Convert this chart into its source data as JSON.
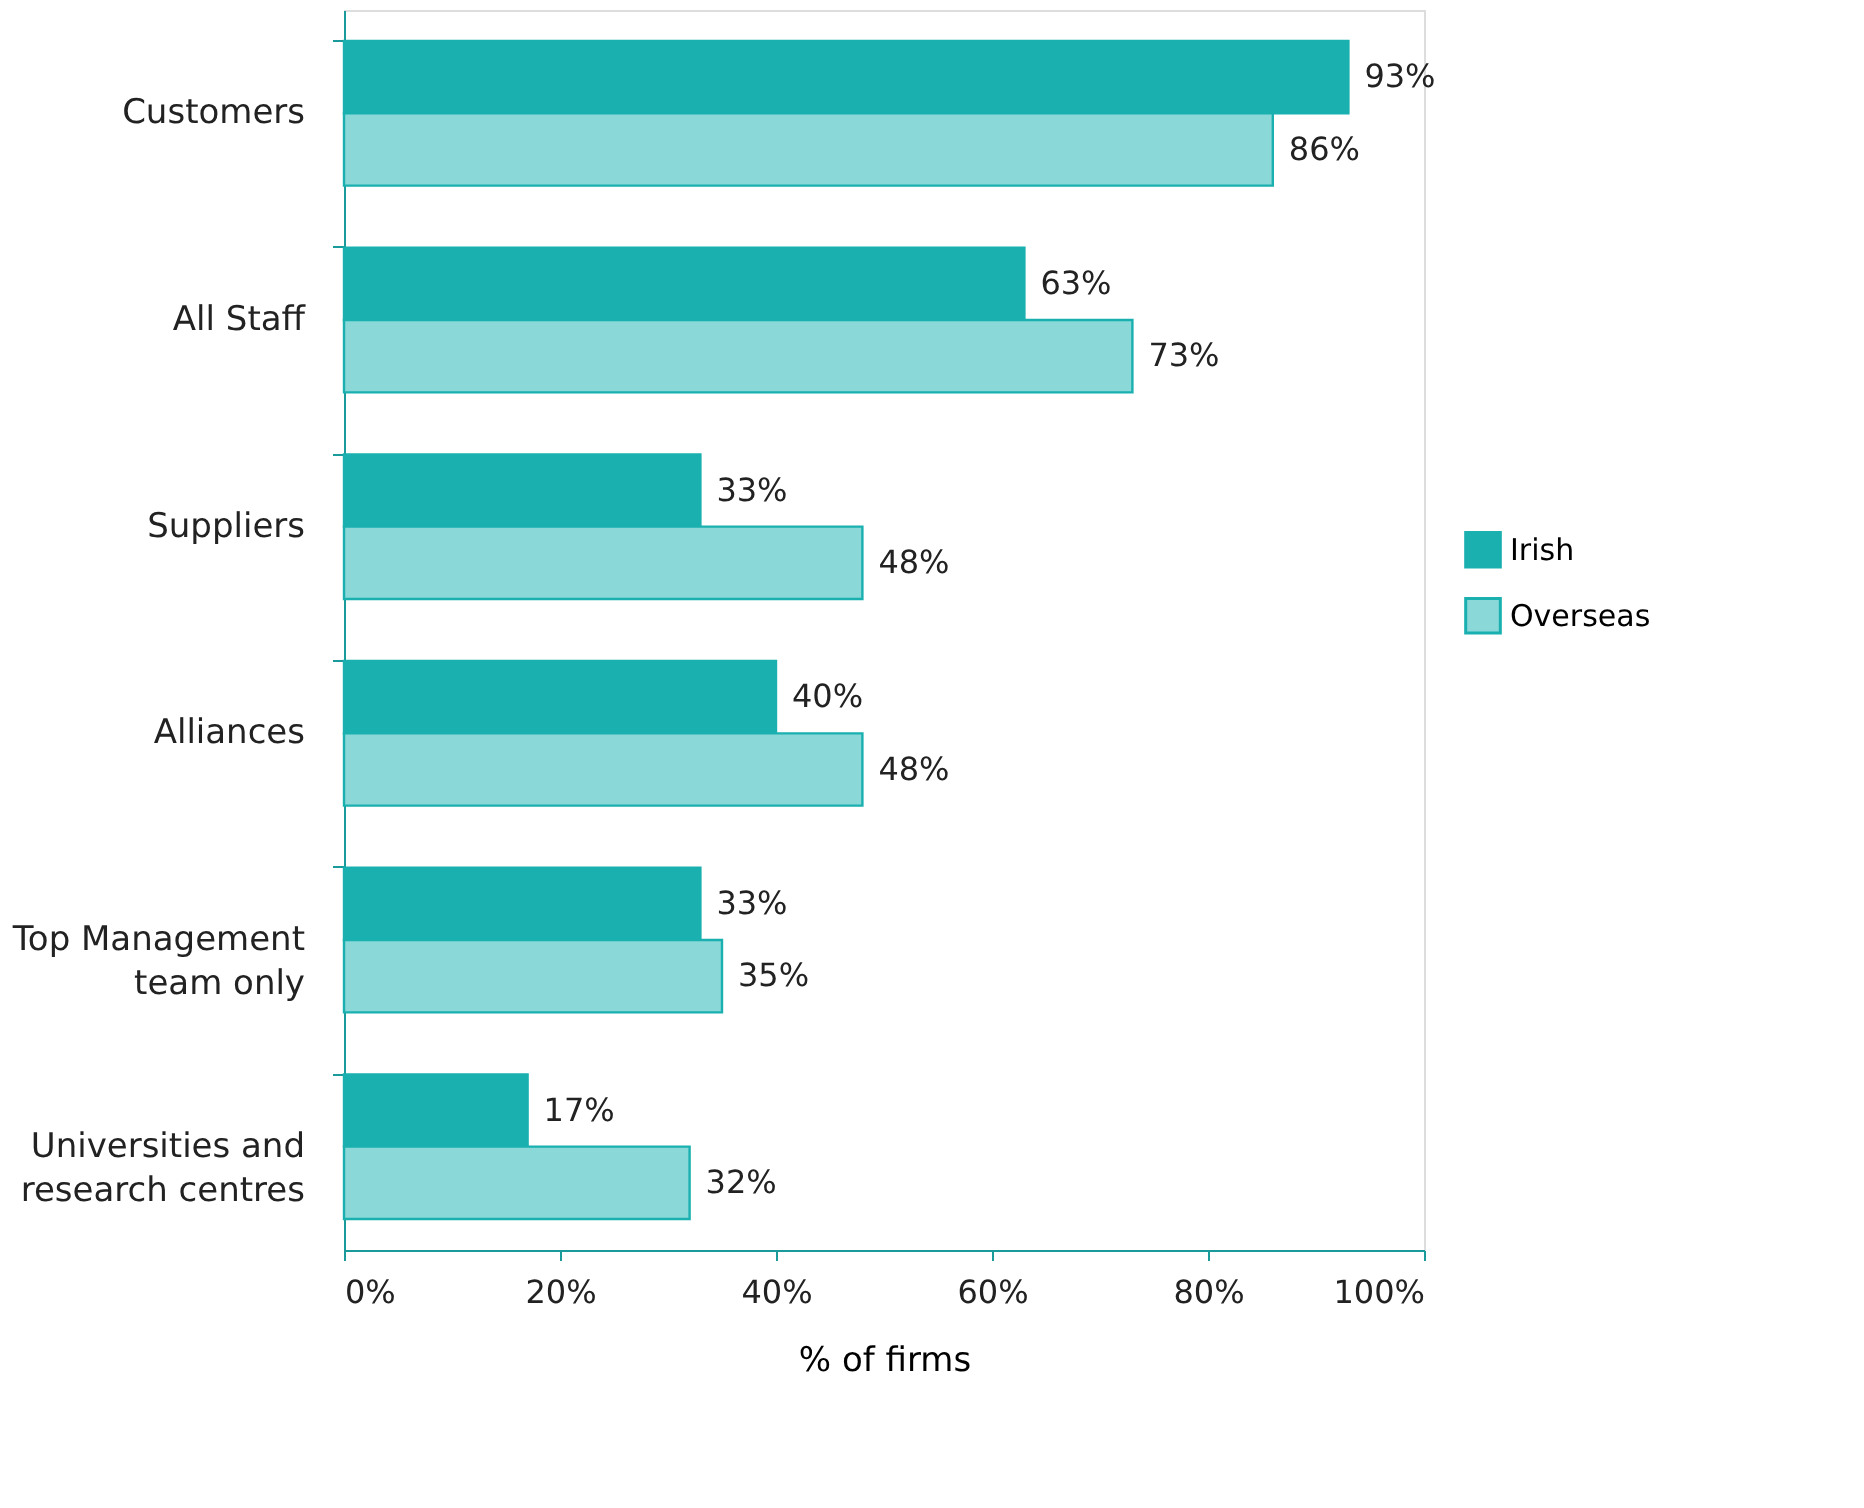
{
  "chart_data": {
    "type": "bar",
    "orientation": "horizontal",
    "xlabel": "% of firms",
    "categories": [
      "Customers",
      "All Staff",
      "Suppliers",
      "Alliances",
      "Top Management team only",
      "Universities and research centres"
    ],
    "series": [
      {
        "name": "Irish",
        "color": "#1ab0b0",
        "values": [
          93,
          63,
          33,
          40,
          33,
          17
        ],
        "value_labels": [
          "93%",
          "63%",
          "33%",
          "40%",
          "33%",
          "17%"
        ]
      },
      {
        "name": "Overseas",
        "color": "#8ad8d8",
        "values": [
          86,
          73,
          48,
          48,
          35,
          32
        ],
        "value_labels": [
          "86%",
          "73%",
          "48%",
          "48%",
          "35%",
          "32%"
        ]
      }
    ],
    "xlim": [
      0,
      100
    ],
    "xticks": [
      {
        "value": 0,
        "label": "0%"
      },
      {
        "value": 20,
        "label": "20%"
      },
      {
        "value": 40,
        "label": "40%"
      },
      {
        "value": 60,
        "label": "60%"
      },
      {
        "value": 80,
        "label": "80%"
      },
      {
        "value": 100,
        "label": "100%"
      }
    ],
    "grid": false,
    "legend": "right"
  }
}
